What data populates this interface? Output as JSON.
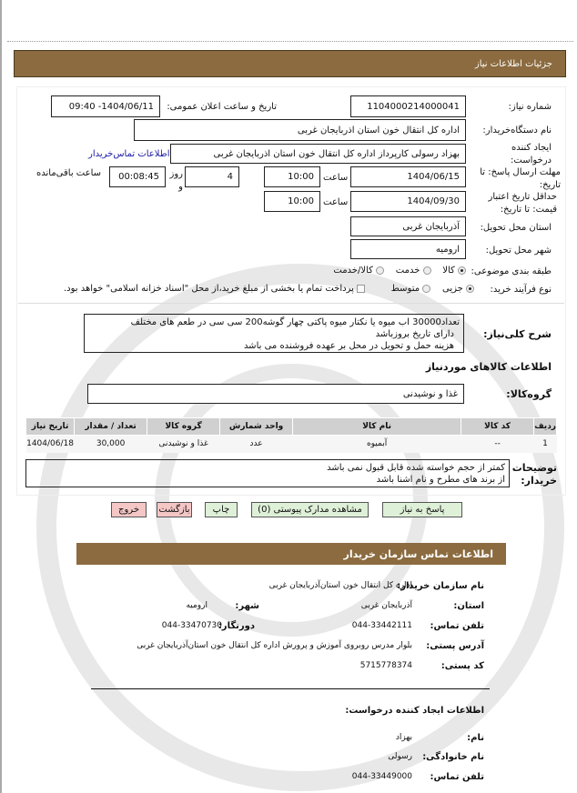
{
  "header": {
    "title": "جزئیات اطلاعات نیاز"
  },
  "form": {
    "need_number_label": "شماره نیاز:",
    "need_number": "1104000214000041",
    "announce_label": "تاریخ و ساعت اعلان عمومی:",
    "announce_value": "1404/06/11- 09:40",
    "buyer_label": "نام دستگاه‌خریدار:",
    "buyer_value": "اداره کل انتقال خون استان  اذربایجان غربی",
    "creator_label": "ایجاد کننده درخواست:",
    "creator_value": "بهزاد رسولی کارپرداز اداره کل انتقال خون استان  اذربایجان غربی",
    "contact_link": "اطلاعات تماس‌خریدار",
    "deadline_label": "مهلت ارسال پاسخ: تا تاریخ:",
    "deadline_date": "1404/06/15",
    "time_label": "ساعت",
    "deadline_time": "10:00",
    "days_value": "4",
    "days_label": "روز و",
    "remaining_value": "00:08:45",
    "remaining_label": "ساعت باقی‌مانده",
    "validity_label": "حداقل تاریخ اعتبار قیمت: تا تاریخ:",
    "validity_date": "1404/09/30",
    "validity_time": "10:00",
    "province_label": "استان محل تحویل:",
    "province_value": "آذربایجان غربی",
    "city_label": "شهر محل تحویل:",
    "city_value": "ارومیه",
    "category_label": "طبقه بندی موضوعی:",
    "category_options": [
      "کالا",
      "خدمت",
      "کالا/خدمت"
    ],
    "category_selected": "کالا",
    "process_label": "نوع فرآیند خرید:",
    "process_options": [
      "جزیی",
      "متوسط"
    ],
    "process_selected": "جزیی",
    "payment_note": "پرداخت تمام یا بخشی از مبلغ خرید،از محل \"اسناد خزانه اسلامی\" خواهد بود.",
    "description_label": "شرح کلی‌نیاز:",
    "description_lines": [
      "تعداد30000 اب میوه یا نکتار میوه پاکتی چهار گوشه200 سی سی در طعم های مختلف",
      "دارای تاریخ بروزباشد",
      "هزینه حمل و تحویل در محل بر عهده فروشنده می باشد"
    ],
    "goods_title": "اطلاعات کالاهای موردنیاز",
    "goods_group_label": "گروه‌کالا:",
    "goods_group_value": "غذا و نوشیدنی",
    "table": {
      "headers": [
        "ردیف",
        "کد کالا",
        "نام کالا",
        "واحد شمارش",
        "گروه کالا",
        "تعداد / مقدار",
        "تاریخ نیاز"
      ],
      "rows": [
        [
          "1",
          "--",
          "آبمیوه",
          "عدد",
          "غذا و نوشیدنی",
          "30,000",
          "1404/06/18"
        ]
      ]
    },
    "notes_label": "توضیحات خریدار:",
    "notes_lines": [
      "کمتر از حجم خواسته شده قابل قبول نمی باشد",
      "از برند های مطرح و نام اشنا باشد"
    ]
  },
  "buttons": {
    "reply": "پاسخ به نیاز",
    "attachments": "مشاهده مدارک پیوستی (0)",
    "print": "چاپ",
    "back": "بازگشت",
    "exit": "خروج"
  },
  "contact": {
    "title": "اطلاعات تماس سازمان خریدار",
    "org_label": "نام سازمان خریدار:",
    "org_value": "اداره کل انتقال خون استان‌آذربایجان غربی",
    "province_label": "استان:",
    "province_value": "آذربایجان غربی",
    "city_label": "شهر:",
    "city_value": "ارومیه",
    "phone_label": "تلفن تماس:",
    "phone_value": "044-33442111",
    "fax_label": "دورنگار:",
    "fax_value": "044-33470730",
    "address_label": "آدرس پستی:",
    "address_value": "بلوار مدرس روبروی آموزش و پرورش اداره کل انتقال خون استان‌آذربایجان غربی",
    "postal_label": "کد پستی:",
    "postal_value": "5715778374",
    "creator_title": "اطلاعات ایجاد کننده درخواست:",
    "name_label": "نام:",
    "name_value": "بهزاد",
    "family_label": "نام خانوادگی:",
    "family_value": "رسولی",
    "creator_phone_label": "تلفن تماس:",
    "creator_phone_value": "044-33449000"
  },
  "colors": {
    "header_bar": "#8b6b3f",
    "link": "#1a1aa6",
    "green_button": "#dff0d8",
    "red_button": "#f4c6c6"
  }
}
